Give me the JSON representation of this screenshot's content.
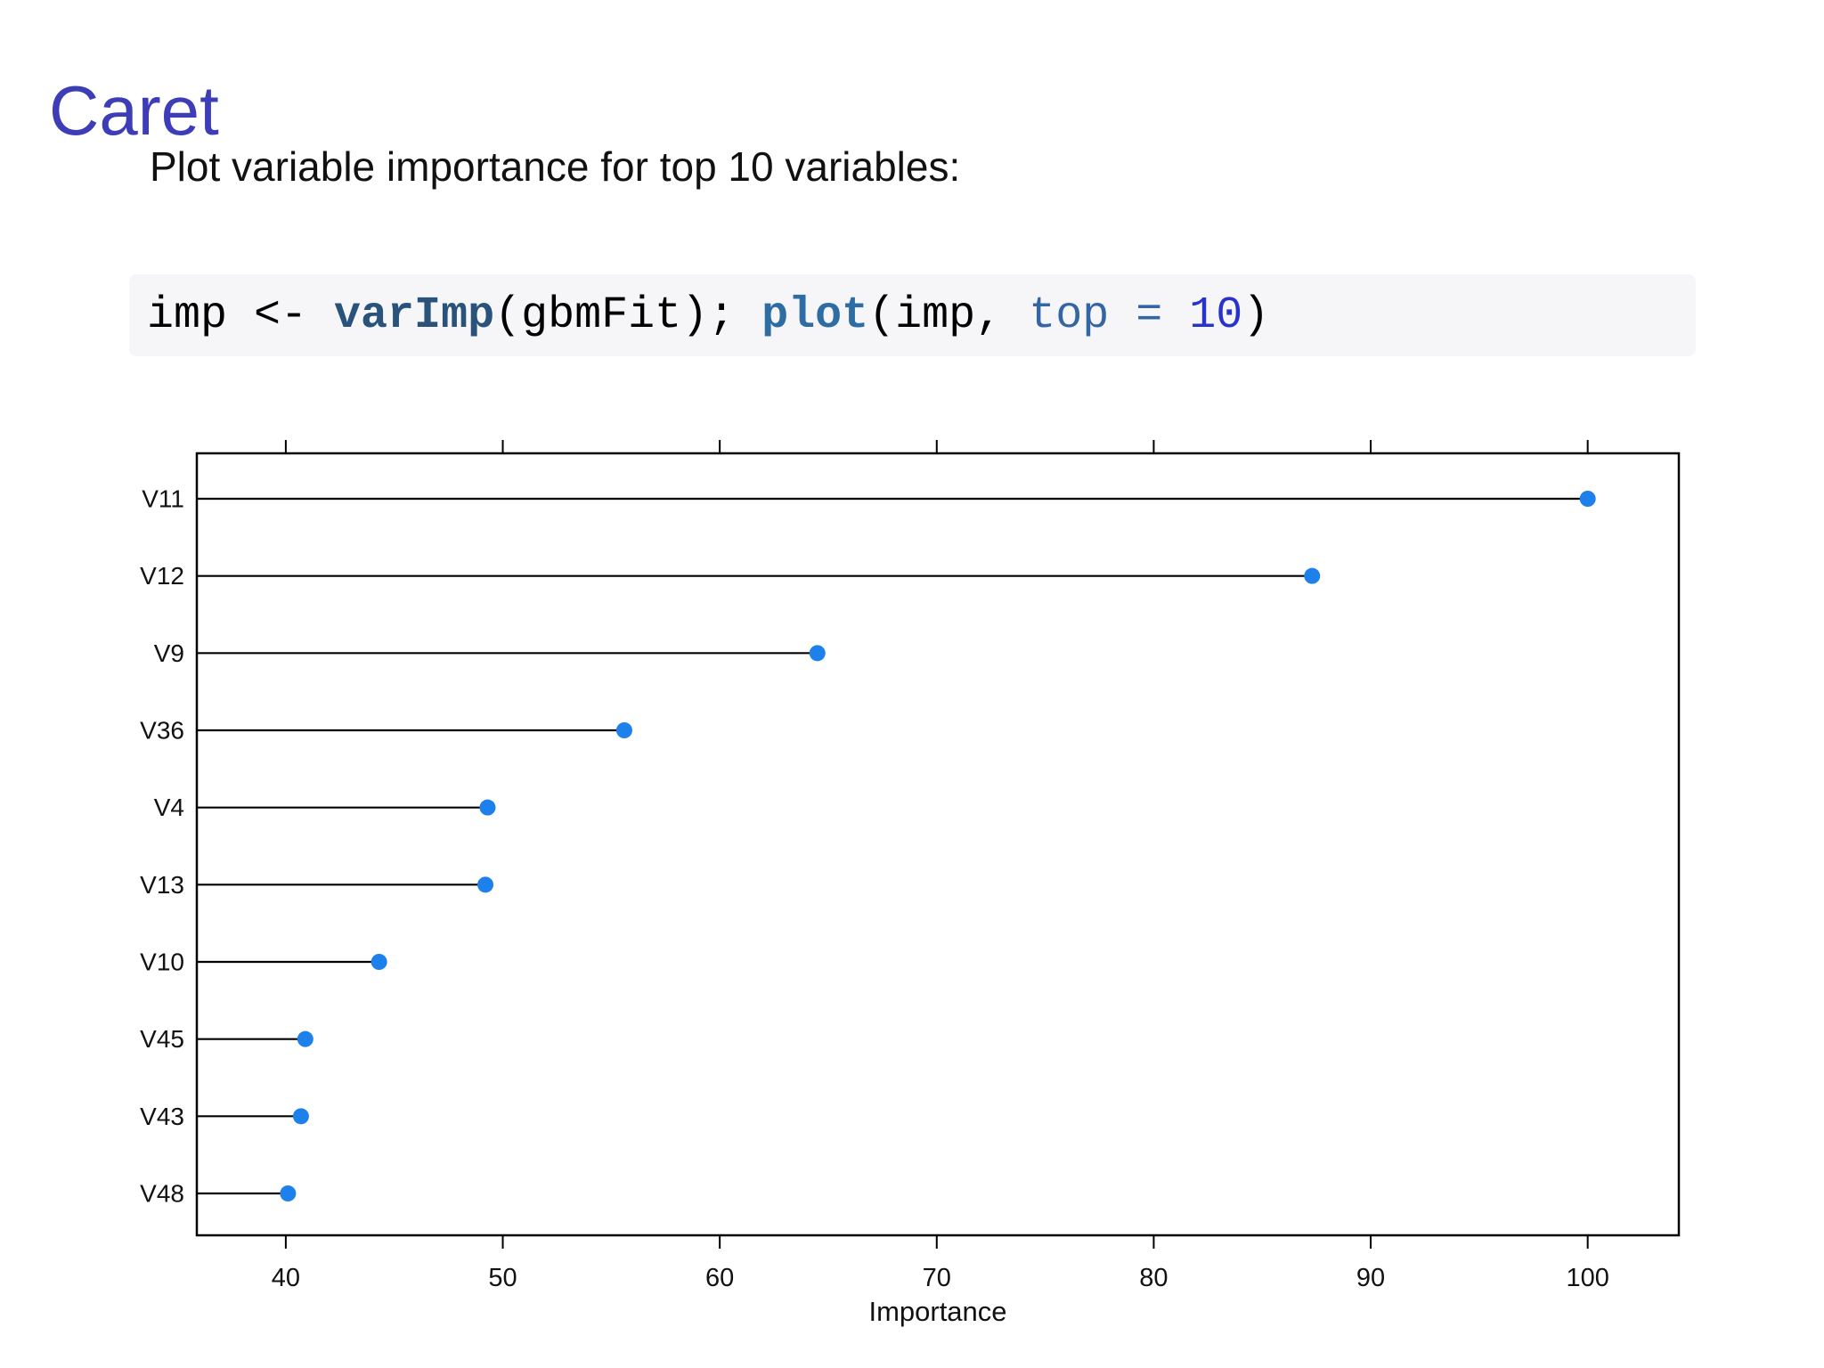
{
  "slide": {
    "title": "Caret",
    "title_color": "#3D3DB8",
    "subtitle": "Plot variable importance for top 10 variables:"
  },
  "code": {
    "background": "#F6F6F9",
    "tokens": [
      {
        "text": "imp <- ",
        "color": "#000000",
        "bold": false
      },
      {
        "text": "varImp",
        "color": "#29537A",
        "bold": true
      },
      {
        "text": "(gbmFit); ",
        "color": "#000000",
        "bold": false
      },
      {
        "text": "plot",
        "color": "#2E6DA4",
        "bold": true
      },
      {
        "text": "(imp, ",
        "color": "#000000",
        "bold": false
      },
      {
        "text": "top",
        "color": "#3465A4",
        "bold": false
      },
      {
        "text": " = ",
        "color": "#3465A4",
        "bold": false
      },
      {
        "text": "10",
        "color": "#2733CC",
        "bold": false
      },
      {
        "text": ")",
        "color": "#000000",
        "bold": false
      }
    ]
  },
  "chart_data": {
    "type": "scatter",
    "subtype": "dotplot",
    "categories": [
      "V11",
      "V12",
      "V9",
      "V36",
      "V4",
      "V13",
      "V10",
      "V45",
      "V43",
      "V48"
    ],
    "values": [
      100,
      87.3,
      64.5,
      55.6,
      49.3,
      49.2,
      44.3,
      40.9,
      40.7,
      40.1
    ],
    "title": "",
    "xlabel": "Importance",
    "ylabel": "",
    "xlim": [
      35.9,
      104.2
    ],
    "xticks": [
      40,
      50,
      60,
      70,
      80,
      90,
      100
    ],
    "grid": false,
    "legend": "none",
    "dot_color": "#1E80EB",
    "line_color": "#000000",
    "axis_color": "#000000",
    "tick_label_color": "#111111"
  }
}
